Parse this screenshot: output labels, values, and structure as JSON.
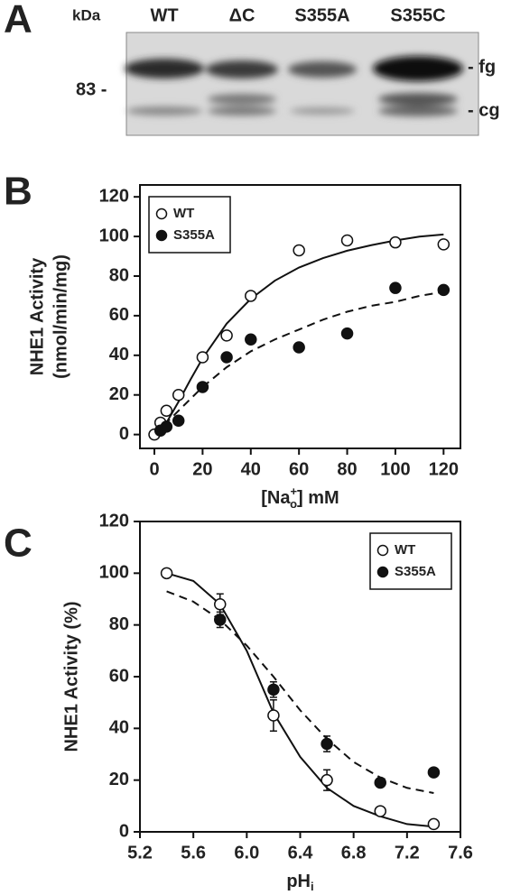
{
  "blot": {
    "panel": "A",
    "unit": "kDa",
    "lanes": [
      "WT",
      "ΔC",
      "S355A",
      "S355C"
    ],
    "marker": "83 -",
    "bands": [
      "- fg",
      "- cg"
    ]
  },
  "chart_data": [
    {
      "type": "scatter",
      "panel": "B",
      "ylabel": [
        "NHE1 Activity",
        "(nmol/min/mg)"
      ],
      "xlabel_parts": [
        "[Na",
        "+",
        "o",
        "] mM"
      ],
      "xlim": [
        -6,
        127
      ],
      "ylim": [
        -7,
        126
      ],
      "xticks": [
        0,
        20,
        40,
        60,
        80,
        100,
        120
      ],
      "yticks": [
        0,
        20,
        40,
        60,
        80,
        100,
        120
      ],
      "legend": "upper left",
      "series": [
        {
          "name": "WT",
          "marker": "open",
          "color": "#111111",
          "x": [
            0,
            2.5,
            5,
            10,
            20,
            30,
            40,
            60,
            80,
            100,
            120
          ],
          "values": [
            0,
            6,
            12,
            20,
            39,
            50,
            70,
            93,
            98,
            97,
            96
          ]
        },
        {
          "name": "S355A",
          "marker": "filled",
          "color": "#111111",
          "x": [
            2.5,
            5,
            10,
            20,
            30,
            40,
            60,
            80,
            100,
            120
          ],
          "values": [
            2,
            4,
            7,
            24,
            39,
            48,
            44,
            51,
            74,
            73
          ]
        }
      ],
      "fits": [
        {
          "dash": false,
          "x": [
            0,
            5,
            10,
            15,
            20,
            30,
            40,
            50,
            60,
            70,
            80,
            90,
            100,
            110,
            120
          ],
          "values": [
            0,
            6,
            16.5,
            27.8,
            38.5,
            56,
            68.5,
            77.7,
            84.3,
            89.1,
            92.8,
            95.6,
            98,
            99.9,
            101
          ]
        },
        {
          "dash": true,
          "x": [
            0,
            5,
            10,
            15,
            20,
            30,
            40,
            50,
            60,
            70,
            80,
            90,
            100,
            110,
            120
          ],
          "values": [
            0,
            6,
            12,
            18,
            24,
            34,
            42,
            48,
            53,
            58,
            62,
            65,
            67,
            70,
            72
          ]
        }
      ]
    },
    {
      "type": "scatter",
      "panel": "C",
      "ylabel": [
        "NHE1 Activity (%)"
      ],
      "xlabel_parts": [
        "pH",
        "",
        "i",
        ""
      ],
      "xlim": [
        5.2,
        7.6
      ],
      "ylim": [
        0,
        120
      ],
      "xticks": [
        5.2,
        5.6,
        {
          "value": 6,
          "label": "6.0"
        },
        6.4,
        6.8,
        7.2,
        7.6
      ],
      "yticks": [
        0,
        20,
        40,
        60,
        80,
        100,
        120
      ],
      "legend": "upper right",
      "series": [
        {
          "name": "WT",
          "marker": "open",
          "color": "#111111",
          "x": [
            5.4,
            5.8,
            6.2,
            6.6,
            7.0,
            7.4
          ],
          "values": [
            100,
            88,
            45,
            20,
            8,
            3
          ],
          "errors": [
            null,
            4,
            6,
            4,
            null,
            null
          ]
        },
        {
          "name": "S355A",
          "marker": "filled",
          "color": "#111111",
          "x": [
            5.8,
            6.2,
            6.6,
            7.0,
            7.4
          ],
          "values": [
            82,
            55,
            34,
            19,
            23
          ],
          "errors": [
            3,
            3,
            3,
            null,
            null
          ]
        }
      ],
      "fits": [
        {
          "dash": false,
          "x": [
            5.4,
            5.6,
            5.8,
            6.0,
            6.2,
            6.4,
            6.6,
            6.8,
            7.0,
            7.2,
            7.4
          ],
          "values": [
            100,
            97,
            88,
            70,
            46,
            29,
            17,
            10,
            6,
            3,
            2
          ]
        },
        {
          "dash": true,
          "x": [
            5.4,
            5.6,
            5.8,
            6.0,
            6.2,
            6.4,
            6.6,
            6.8,
            7.0,
            7.2,
            7.4
          ],
          "values": [
            93,
            89,
            82,
            72,
            60,
            47,
            36,
            27,
            21,
            17,
            15
          ]
        }
      ]
    }
  ]
}
